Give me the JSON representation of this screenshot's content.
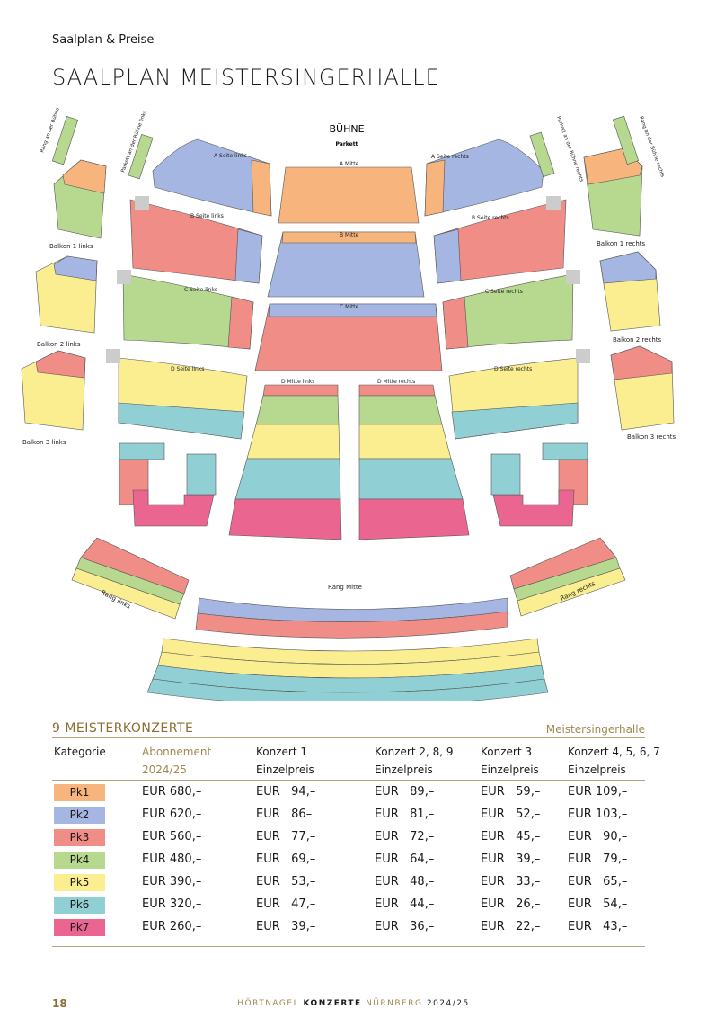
{
  "header": {
    "section": "Saalplan & Preise",
    "title": "SAALPLAN MEISTERSINGERHALLE"
  },
  "colors": {
    "Pk1": "#f7b47c",
    "Pk2": "#a4b6e1",
    "Pk3": "#ef8d86",
    "Pk4": "#b6d98f",
    "Pk5": "#fbee91",
    "Pk6": "#90d0d5",
    "Pk7": "#ea6590",
    "accent": "#a08850"
  },
  "seatmap": {
    "stage": "BÜHNE",
    "parkett": "Parkett",
    "labels": {
      "a_links": "A  Seite links",
      "a_mitte": "A  Mitte",
      "a_rechts": "A  Seite rechts",
      "b_links": "B  Seite links",
      "b_mitte": "B  Mitte",
      "b_rechts": "B  Seite rechts",
      "c_links": "C  Seite links",
      "c_mitte": "C  Mitte",
      "c_rechts": "C  Seite rechts",
      "d_links": "D  Seite links",
      "d_mitte_links": "D  Mitte links",
      "d_mitte_rechts": "D  Mitte rechts",
      "d_rechts": "D  Seite rechts",
      "balkon1l": "Balkon 1 links",
      "balkon2l": "Balkon 2 links",
      "balkon3l": "Balkon 3 links",
      "balkon1r": "Balkon 1 rechts",
      "balkon2r": "Balkon 2 rechts",
      "balkon3r": "Balkon 3 rechts",
      "rang_buehne_links": "Rang an der Bühne links",
      "rang_buehne_rechts": "Rang an der Bühne rechts",
      "parkett_buehne_links": "Parkett an der Bühne links",
      "parkett_buehne_rechts": "Parkett an der Bühne rechts",
      "rang_links": "Rang links",
      "rang_mitte": "Rang Mitte",
      "rang_rechts": "Rang rechts"
    },
    "wheelchair_icon": "wheelchair-icon"
  },
  "prices": {
    "heading": "9 MEISTERKONZERTE",
    "venue": "Meistersingerhalle",
    "columns": [
      {
        "line1": "Kategorie",
        "line2": ""
      },
      {
        "line1": "Abonnement",
        "line2": "2024/25"
      },
      {
        "line1": "Konzert 1",
        "line2": "Einzelpreis"
      },
      {
        "line1": "Konzert 2, 8, 9",
        "line2": "Einzelpreis"
      },
      {
        "line1": "Konzert 3",
        "line2": "Einzelpreis"
      },
      {
        "line1": "Konzert 4, 5, 6, 7",
        "line2": "Einzelpreis"
      }
    ],
    "rows": [
      {
        "cat": "Pk1",
        "abo": "EUR 680,–",
        "k1": "EUR   94,–",
        "k2": "EUR   89,–",
        "k3": "EUR   59,–",
        "k4": "EUR 109,–"
      },
      {
        "cat": "Pk2",
        "abo": "EUR 620,–",
        "k1": "EUR   86–",
        "k2": "EUR   81,–",
        "k3": "EUR   52,–",
        "k4": "EUR 103,–"
      },
      {
        "cat": "Pk3",
        "abo": "EUR 560,–",
        "k1": "EUR   77,–",
        "k2": "EUR   72,–",
        "k3": "EUR   45,–",
        "k4": "EUR   90,–"
      },
      {
        "cat": "Pk4",
        "abo": "EUR 480,–",
        "k1": "EUR   69,–",
        "k2": "EUR   64,–",
        "k3": "EUR   39,–",
        "k4": "EUR   79,–"
      },
      {
        "cat": "Pk5",
        "abo": "EUR 390,–",
        "k1": "EUR   53,–",
        "k2": "EUR   48,–",
        "k3": "EUR   33,–",
        "k4": "EUR   65,–"
      },
      {
        "cat": "Pk6",
        "abo": "EUR 320,–",
        "k1": "EUR   47,–",
        "k2": "EUR   44,–",
        "k3": "EUR   26,–",
        "k4": "EUR   54,–"
      },
      {
        "cat": "Pk7",
        "abo": "EUR 260,–",
        "k1": "EUR   39,–",
        "k2": "EUR   36,–",
        "k3": "EUR   22,–",
        "k4": "EUR   43,–"
      }
    ]
  },
  "footer": {
    "page": "18",
    "brand_a": "HÖRTNAGEL ",
    "brand_b": "KONZERTE",
    "brand_c": " NÜRNBERG ",
    "brand_d": "2024/25"
  }
}
